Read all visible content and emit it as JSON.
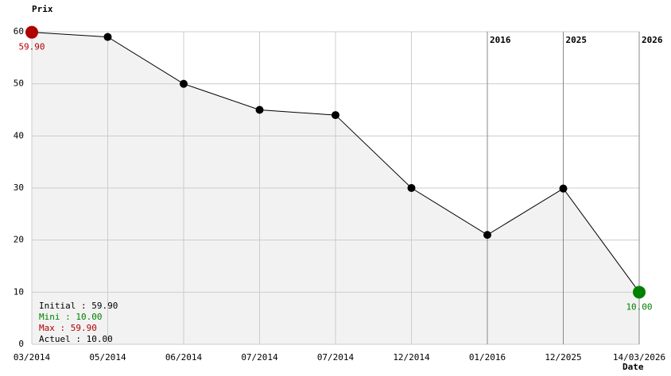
{
  "chart_data": {
    "type": "line",
    "y_label": "Prix",
    "x_label": "Date",
    "categories": [
      "03/2014",
      "05/2014",
      "06/2014",
      "07/2014",
      "07/2014",
      "12/2014",
      "01/2016",
      "12/2025",
      "14/03/2026"
    ],
    "values": [
      59.9,
      59,
      50,
      45,
      44,
      30,
      21,
      29.9,
      10
    ],
    "value_labels": [
      "59.90",
      null,
      null,
      null,
      null,
      null,
      null,
      null,
      "10.00"
    ],
    "color": "#000000",
    "fill": "#f2f2f2",
    "start_color": "#b00000",
    "end_color": "#008000",
    "ylim": [
      0,
      60
    ],
    "yticks": [
      0,
      10,
      20,
      30,
      40,
      50,
      60
    ],
    "grid": true,
    "year_markers": [
      {
        "label": "2016",
        "category_index": 6
      },
      {
        "label": "2025",
        "category_index": 7
      },
      {
        "label": "2026",
        "category_index": 8
      }
    ],
    "stats": [
      {
        "text": "Initial : 59.90",
        "color": "#000000"
      },
      {
        "text": "Mini : 10.00",
        "color": "#008000"
      },
      {
        "text": "Max : 59.90",
        "color": "#b00000"
      },
      {
        "text": "Actuel : 10.00",
        "color": "#000000"
      }
    ]
  }
}
